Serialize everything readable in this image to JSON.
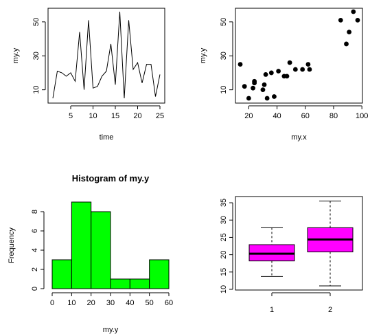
{
  "chart_data": [
    {
      "type": "line",
      "xlabel": "time",
      "ylabel": "my.y",
      "x": [
        1,
        2,
        3,
        4,
        5,
        6,
        7,
        8,
        9,
        10,
        11,
        12,
        13,
        14,
        15,
        16,
        17,
        18,
        19,
        20,
        21,
        22,
        23,
        24,
        25
      ],
      "y": [
        5,
        21,
        20,
        18,
        20,
        15,
        44,
        10,
        51,
        11,
        12,
        18,
        21,
        37,
        13,
        56,
        5,
        51,
        22,
        26,
        14,
        25,
        25,
        6,
        19
      ],
      "xlim": [
        1,
        25
      ],
      "ylim": [
        5,
        56
      ],
      "xticks": [
        5,
        10,
        15,
        20,
        25
      ],
      "yticks": [
        10,
        30,
        50
      ],
      "color": "#000000"
    },
    {
      "type": "scatter",
      "xlabel": "my.x",
      "ylabel": "my.y",
      "x": [
        14,
        17,
        20,
        23,
        24,
        24,
        30,
        31,
        32,
        33,
        36,
        38,
        41,
        45,
        47,
        49,
        53,
        58,
        62,
        63,
        85,
        89,
        91,
        94,
        97
      ],
      "y": [
        25,
        12,
        5,
        11,
        14,
        15,
        10,
        13,
        19,
        5,
        20,
        6,
        21,
        18,
        18,
        26,
        22,
        22,
        25,
        22,
        51,
        37,
        44,
        56,
        51
      ],
      "xlim": [
        14,
        97
      ],
      "ylim": [
        5,
        56
      ],
      "xticks": [
        20,
        40,
        60,
        80,
        100
      ],
      "yticks": [
        10,
        30,
        50
      ],
      "color": "#000000"
    },
    {
      "type": "bar",
      "title": "Histogram of my.y",
      "xlabel": "my.y",
      "ylabel": "Frequency",
      "bins": [
        [
          0,
          10
        ],
        [
          10,
          20
        ],
        [
          20,
          30
        ],
        [
          30,
          40
        ],
        [
          40,
          50
        ],
        [
          50,
          60
        ]
      ],
      "values": [
        3,
        9,
        8,
        1,
        1,
        3
      ],
      "xlim": [
        0,
        60
      ],
      "ylim": [
        0,
        9
      ],
      "xticks": [
        0,
        10,
        20,
        30,
        40,
        50,
        60
      ],
      "yticks": [
        0,
        2,
        4,
        6,
        8
      ],
      "color": "#00ff00"
    },
    {
      "type": "box",
      "categories": [
        "1",
        "2"
      ],
      "boxes": [
        {
          "min": 13.7,
          "q1": 18.2,
          "median": 20.3,
          "q3": 22.9,
          "max": 27.8
        },
        {
          "min": 11.0,
          "q1": 20.8,
          "median": 24.4,
          "q3": 27.8,
          "max": 35.5
        }
      ],
      "ylim": [
        10,
        36
      ],
      "yticks": [
        10,
        15,
        20,
        25,
        30,
        35
      ],
      "color": "#ff00ff"
    }
  ]
}
